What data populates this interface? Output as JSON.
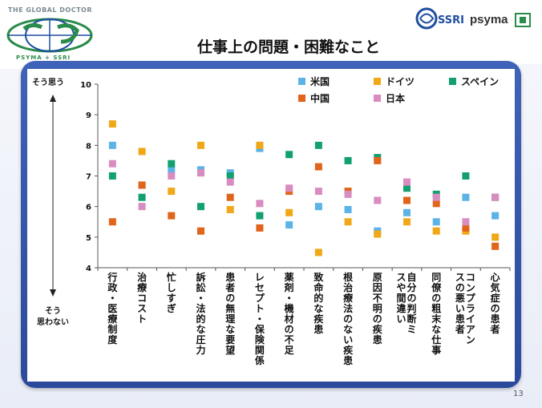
{
  "header": {
    "logo_top_text": "THE GLOBAL DOCTOR",
    "logo_bottom_text": "PSYMA + SSRI",
    "brand_ssri": "SSRI",
    "brand_psyma": "psyma"
  },
  "page_title": "仕事上の問題・困難なこと",
  "page_number": "13",
  "side_labels": {
    "top": "そう思う",
    "bottom": "そう\n思わない"
  },
  "colors": {
    "frame": "#2f4fa3",
    "usa": "#5bb3e6",
    "germany": "#f0a818",
    "spain": "#12a070",
    "china": "#e0641a",
    "japan": "#d98cc0"
  },
  "chart_data": {
    "type": "scatter",
    "ylim": [
      4,
      10
    ],
    "yticks": [
      4,
      5,
      6,
      7,
      8,
      9,
      10
    ],
    "legend_position": "top",
    "categories": [
      "行政・医療制度",
      "治療コスト",
      "忙しすぎ",
      "訴訟・法的な圧力",
      "患者の無理な要望",
      "レセプト・保険関係",
      "薬剤・機材の不足",
      "致命的な疾患",
      "根治療法のない疾患",
      "原因不明の疾患",
      "自分の判断ミスや間違い",
      "同僚の粗末な仕事",
      "コンプライアンスの悪い患者",
      "心気症の患者"
    ],
    "series": [
      {
        "name": "米国",
        "color": "#5bb3e6",
        "values": [
          8.0,
          6.7,
          7.2,
          7.2,
          7.1,
          7.9,
          5.4,
          6.0,
          5.9,
          5.2,
          5.8,
          5.5,
          6.3,
          5.7
        ]
      },
      {
        "name": "ドイツ",
        "color": "#f0a818",
        "values": [
          8.7,
          7.8,
          6.5,
          8.0,
          5.9,
          8.0,
          5.8,
          4.5,
          5.5,
          5.1,
          5.5,
          5.2,
          5.2,
          5.0
        ]
      },
      {
        "name": "スペイン",
        "color": "#12a070",
        "values": [
          7.0,
          6.3,
          7.4,
          6.0,
          7.0,
          5.7,
          7.7,
          8.0,
          7.5,
          7.6,
          6.6,
          6.4,
          7.0,
          6.3
        ]
      },
      {
        "name": "中国",
        "color": "#e0641a",
        "values": [
          5.5,
          6.7,
          5.7,
          5.2,
          6.3,
          5.3,
          6.5,
          7.3,
          6.5,
          7.5,
          6.2,
          6.1,
          5.3,
          4.7
        ]
      },
      {
        "name": "日本",
        "color": "#d98cc0",
        "values": [
          7.4,
          6.0,
          7.0,
          7.1,
          6.8,
          6.1,
          6.6,
          6.5,
          6.4,
          6.2,
          6.8,
          6.3,
          5.5,
          6.3
        ]
      }
    ]
  }
}
